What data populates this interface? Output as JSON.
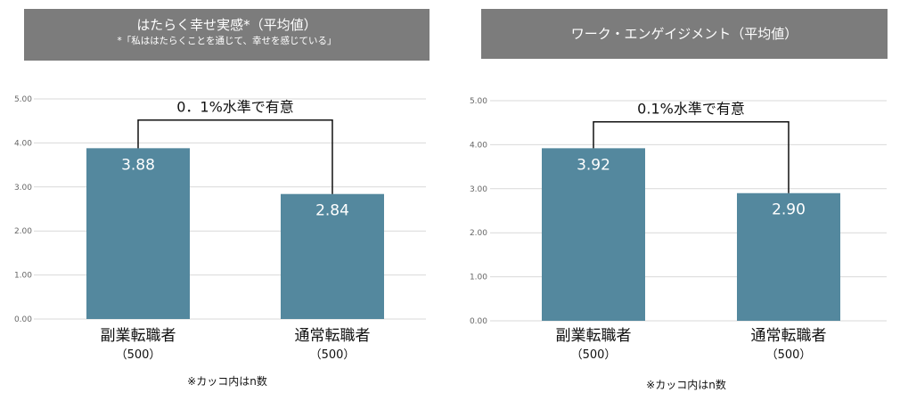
{
  "colors": {
    "title_bg": "#7c7c7c",
    "bar": "#54889e",
    "grid": "#d9d9d9",
    "bracket": "#111111"
  },
  "footnote": "※カッコ内はn数",
  "chart_data": [
    {
      "type": "bar",
      "title": "はたらく幸せ実感*（平均値）",
      "subtitle": "*「私ははたらくことを通じて、幸せを感じている」",
      "categories": [
        "副業転職者",
        "通常転職者"
      ],
      "sample_sizes": [
        "（500）",
        "（500）"
      ],
      "values": [
        3.88,
        2.84
      ],
      "value_labels": [
        "3.88",
        "2.84"
      ],
      "ylim": [
        0,
        5
      ],
      "yticks": [
        "0.00",
        "1.00",
        "2.00",
        "3.00",
        "4.00",
        "5.00"
      ],
      "grid": true,
      "annotation": "0．1%水準で有意"
    },
    {
      "type": "bar",
      "title": "ワーク・エンゲイジメント（平均値）",
      "subtitle": "",
      "categories": [
        "副業転職者",
        "通常転職者"
      ],
      "sample_sizes": [
        "（500）",
        "（500）"
      ],
      "values": [
        3.92,
        2.9
      ],
      "value_labels": [
        "3.92",
        "2.90"
      ],
      "ylim": [
        0,
        5
      ],
      "yticks": [
        "0.00",
        "1.00",
        "2.00",
        "3.00",
        "4.00",
        "5.00"
      ],
      "grid": true,
      "annotation": "0.1%水準で有意"
    }
  ]
}
